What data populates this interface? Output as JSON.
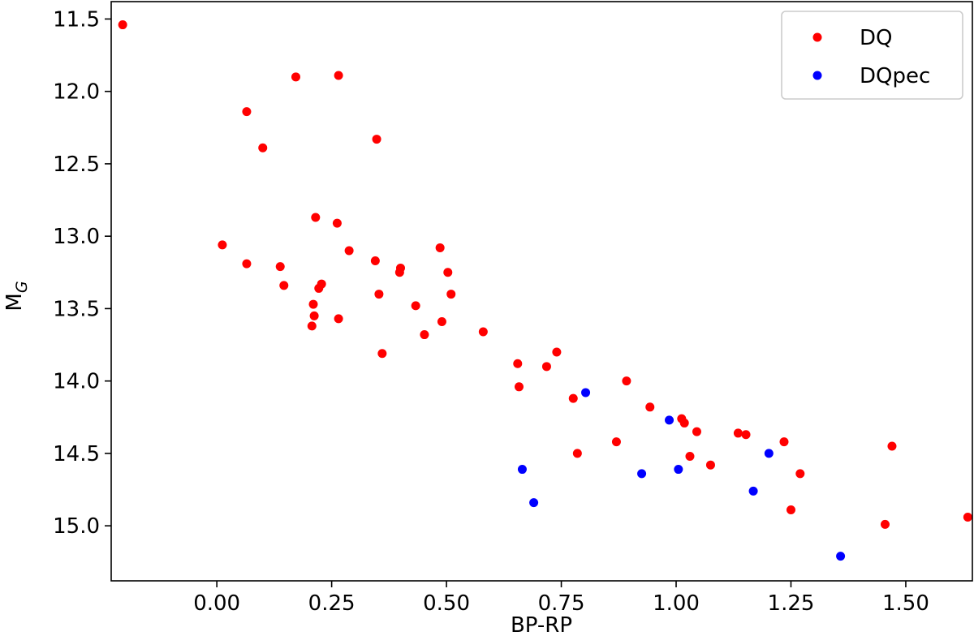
{
  "chart_data": {
    "type": "scatter",
    "title": "",
    "xlabel": "BP-RP",
    "ylabel": {
      "main": "M",
      "sub": "G"
    },
    "xlim": [
      -0.23,
      1.645
    ],
    "ylim": [
      15.38,
      11.38
    ],
    "y_inverted": true,
    "x_ticks": [
      0.0,
      0.25,
      0.5,
      0.75,
      1.0,
      1.25,
      1.5
    ],
    "x_tick_labels": [
      "0.00",
      "0.25",
      "0.50",
      "0.75",
      "1.00",
      "1.25",
      "1.50"
    ],
    "y_ticks": [
      11.5,
      12.0,
      12.5,
      13.0,
      13.5,
      14.0,
      14.5,
      15.0
    ],
    "y_tick_labels": [
      "11.5",
      "12.0",
      "12.5",
      "13.0",
      "13.5",
      "14.0",
      "14.5",
      "15.0"
    ],
    "grid": false,
    "legend_position": "top-right",
    "series": [
      {
        "name": "DQ",
        "color": "#ff0000",
        "points": [
          [
            -0.205,
            11.54
          ],
          [
            0.172,
            11.9
          ],
          [
            0.265,
            11.89
          ],
          [
            0.065,
            12.14
          ],
          [
            0.1,
            12.39
          ],
          [
            0.348,
            12.33
          ],
          [
            0.215,
            12.87
          ],
          [
            0.262,
            12.91
          ],
          [
            0.012,
            13.06
          ],
          [
            0.288,
            13.1
          ],
          [
            0.486,
            13.08
          ],
          [
            0.065,
            13.19
          ],
          [
            0.138,
            13.21
          ],
          [
            0.345,
            13.17
          ],
          [
            0.4,
            13.22
          ],
          [
            0.398,
            13.25
          ],
          [
            0.503,
            13.25
          ],
          [
            0.228,
            13.33
          ],
          [
            0.222,
            13.36
          ],
          [
            0.146,
            13.34
          ],
          [
            0.353,
            13.4
          ],
          [
            0.51,
            13.4
          ],
          [
            0.21,
            13.47
          ],
          [
            0.433,
            13.48
          ],
          [
            0.212,
            13.55
          ],
          [
            0.265,
            13.57
          ],
          [
            0.49,
            13.59
          ],
          [
            0.207,
            13.62
          ],
          [
            0.452,
            13.68
          ],
          [
            0.58,
            13.66
          ],
          [
            0.36,
            13.81
          ],
          [
            0.74,
            13.8
          ],
          [
            0.655,
            13.88
          ],
          [
            0.718,
            13.9
          ],
          [
            0.658,
            14.04
          ],
          [
            0.776,
            14.12
          ],
          [
            0.892,
            14.0
          ],
          [
            0.943,
            14.18
          ],
          [
            1.012,
            14.26
          ],
          [
            1.018,
            14.29
          ],
          [
            1.045,
            14.35
          ],
          [
            1.135,
            14.36
          ],
          [
            1.152,
            14.37
          ],
          [
            0.87,
            14.42
          ],
          [
            1.235,
            14.42
          ],
          [
            0.785,
            14.5
          ],
          [
            1.03,
            14.52
          ],
          [
            1.075,
            14.58
          ],
          [
            1.27,
            14.64
          ],
          [
            1.47,
            14.45
          ],
          [
            1.25,
            14.89
          ],
          [
            1.455,
            14.99
          ],
          [
            1.635,
            14.94
          ]
        ]
      },
      {
        "name": "DQpec",
        "color": "#0000ff",
        "points": [
          [
            0.803,
            14.08
          ],
          [
            0.985,
            14.27
          ],
          [
            1.202,
            14.5
          ],
          [
            0.665,
            14.61
          ],
          [
            1.005,
            14.61
          ],
          [
            0.925,
            14.64
          ],
          [
            1.168,
            14.76
          ],
          [
            0.69,
            14.84
          ],
          [
            1.358,
            15.21
          ]
        ]
      }
    ]
  }
}
